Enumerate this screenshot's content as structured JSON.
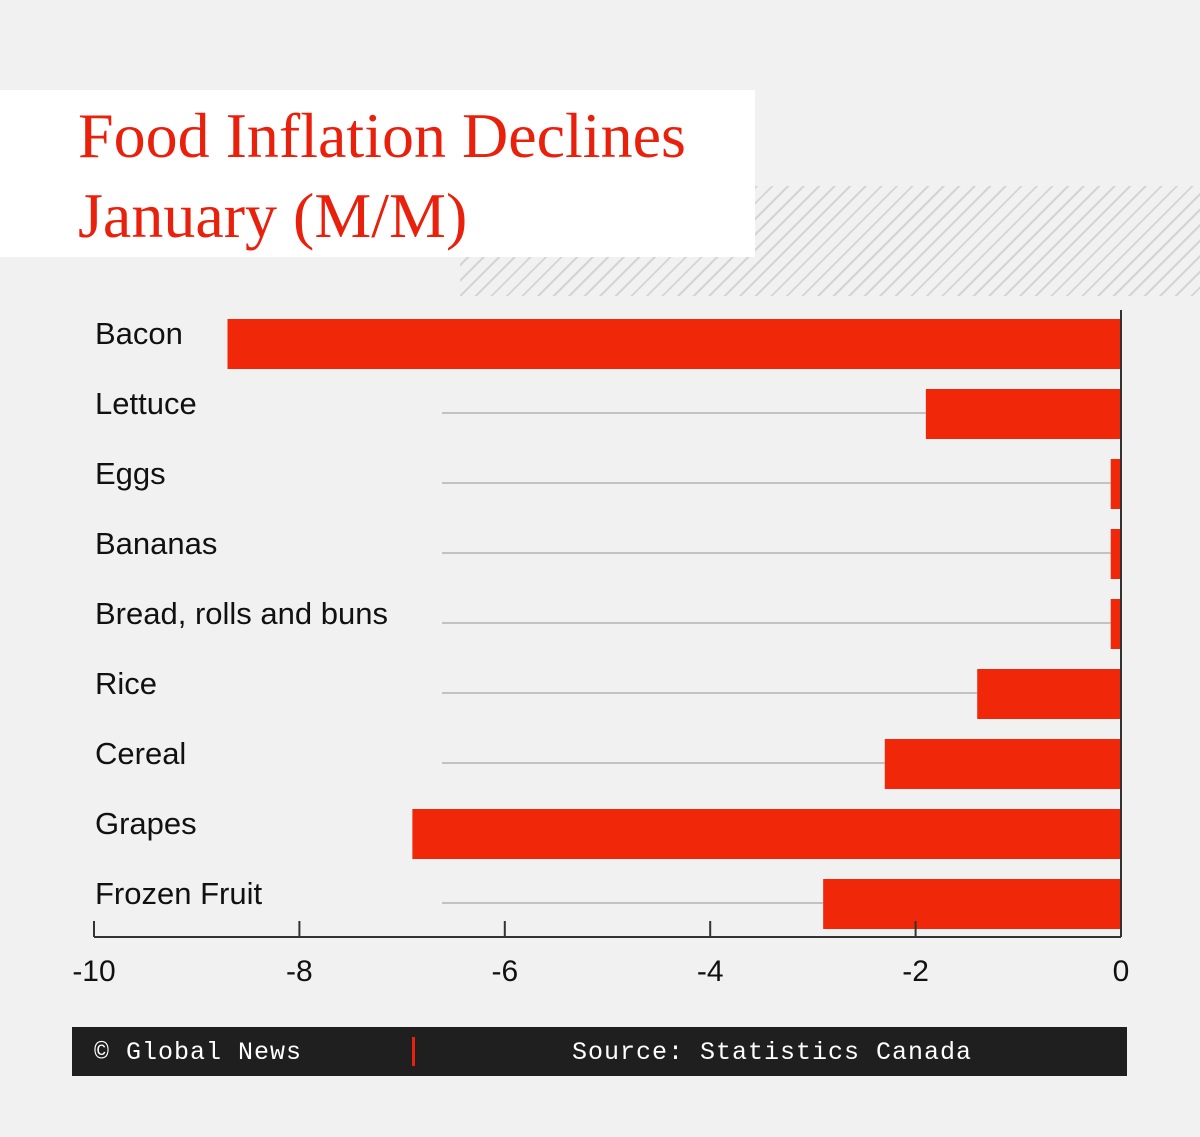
{
  "header": {
    "title_line1": "Food Inflation Declines",
    "title_line2": "January (M/M)"
  },
  "footer": {
    "credit": "© Global News",
    "source": "Source: Statistics Canada"
  },
  "colors": {
    "bar": "#f02708",
    "title": "#e8200c",
    "background": "#f1f1f1",
    "footer_bg": "#1f1f1f"
  },
  "chart_data": {
    "type": "bar",
    "orientation": "horizontal",
    "title": "Food Inflation Declines January (M/M)",
    "categories": [
      "Bacon",
      "Lettuce",
      "Eggs",
      "Bananas",
      "Bread, rolls and buns",
      "Rice",
      "Cereal",
      "Grapes",
      "Frozen Fruit"
    ],
    "values": [
      -8.7,
      -1.9,
      -0.1,
      -0.1,
      -0.1,
      -1.4,
      -2.3,
      -6.9,
      -2.9
    ],
    "xlim": [
      -10,
      0
    ],
    "xticks": [
      -10,
      -8,
      -6,
      -4,
      -2,
      0
    ],
    "xlabel": "",
    "ylabel": "",
    "grid": false
  }
}
